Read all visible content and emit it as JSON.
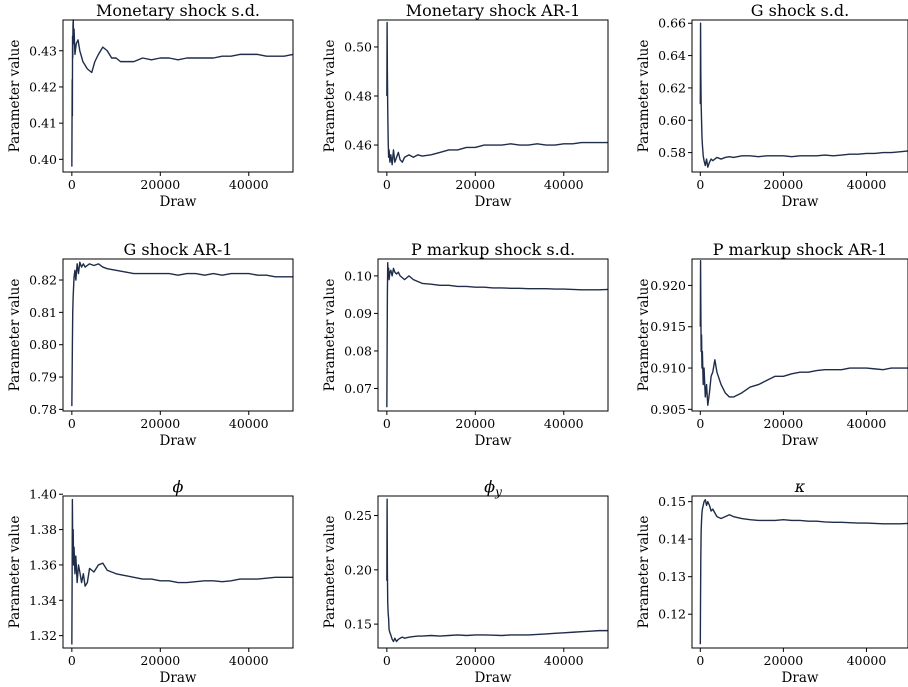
{
  "figure": {
    "line_color": "#1f2d4a"
  },
  "chart_data": [
    {
      "type": "line",
      "title": "Monetary shock s.d.",
      "xlabel": "Draw",
      "ylabel": "Parameter value",
      "xlim": [
        -2000,
        50000
      ],
      "ylim": [
        0.3965,
        0.4385
      ],
      "xticks": [
        0,
        20000,
        40000
      ],
      "yticks": [
        0.4,
        0.41,
        0.42,
        0.43
      ],
      "ytick_labels": [
        "0.40",
        "0.41",
        "0.42",
        "0.43"
      ],
      "series": [
        {
          "x": [
            0,
            80,
            120,
            160,
            200,
            260,
            320,
            400,
            500,
            700,
            1000,
            1400,
            1800,
            2500,
            3500,
            4500,
            5200,
            6000,
            7000,
            8000,
            9000,
            10000,
            11000,
            12000,
            14000,
            16000,
            18000,
            20000,
            22000,
            24000,
            26000,
            28000,
            30000,
            32000,
            34000,
            36000,
            38000,
            40000,
            42000,
            44000,
            46000,
            48000,
            50000
          ],
          "y": [
            0.398,
            0.422,
            0.412,
            0.434,
            0.428,
            0.437,
            0.4385,
            0.432,
            0.436,
            0.429,
            0.432,
            0.433,
            0.43,
            0.427,
            0.425,
            0.424,
            0.427,
            0.429,
            0.431,
            0.43,
            0.428,
            0.428,
            0.427,
            0.427,
            0.427,
            0.428,
            0.4275,
            0.428,
            0.428,
            0.4275,
            0.428,
            0.428,
            0.428,
            0.428,
            0.4285,
            0.4285,
            0.429,
            0.429,
            0.429,
            0.4285,
            0.4285,
            0.4285,
            0.429
          ]
        }
      ]
    },
    {
      "type": "line",
      "title": "Monetary shock AR-1",
      "xlabel": "Draw",
      "ylabel": "Parameter value",
      "xlim": [
        -2000,
        50000
      ],
      "ylim": [
        0.449,
        0.511
      ],
      "xticks": [
        0,
        20000,
        40000
      ],
      "yticks": [
        0.46,
        0.48,
        0.5
      ],
      "ytick_labels": [
        "0.46",
        "0.48",
        "0.50"
      ],
      "series": [
        {
          "x": [
            0,
            60,
            120,
            200,
            300,
            400,
            500,
            700,
            900,
            1200,
            1500,
            1800,
            2200,
            2600,
            3000,
            3500,
            4000,
            5000,
            6000,
            7000,
            8000,
            10000,
            12000,
            14000,
            16000,
            18000,
            20000,
            22000,
            24000,
            26000,
            28000,
            30000,
            32000,
            34000,
            36000,
            38000,
            40000,
            42000,
            44000,
            46000,
            48000,
            50000
          ],
          "y": [
            0.48,
            0.51,
            0.49,
            0.475,
            0.462,
            0.455,
            0.458,
            0.453,
            0.456,
            0.452,
            0.458,
            0.453,
            0.455,
            0.457,
            0.454,
            0.453,
            0.455,
            0.456,
            0.455,
            0.456,
            0.4555,
            0.456,
            0.457,
            0.458,
            0.458,
            0.459,
            0.459,
            0.46,
            0.46,
            0.46,
            0.4605,
            0.46,
            0.46,
            0.4605,
            0.46,
            0.46,
            0.4605,
            0.4605,
            0.461,
            0.461,
            0.461,
            0.461
          ]
        }
      ]
    },
    {
      "type": "line",
      "title": "G shock s.d.",
      "xlabel": "Draw",
      "ylabel": "Parameter value",
      "xlim": [
        -2000,
        50000
      ],
      "ylim": [
        0.568,
        0.662
      ],
      "xticks": [
        0,
        20000,
        40000
      ],
      "yticks": [
        0.58,
        0.6,
        0.62,
        0.64,
        0.66
      ],
      "ytick_labels": [
        "0.58",
        "0.60",
        "0.62",
        "0.64",
        "0.66"
      ],
      "series": [
        {
          "x": [
            0,
            60,
            120,
            200,
            300,
            400,
            500,
            700,
            900,
            1200,
            1500,
            1800,
            2200,
            2600,
            3000,
            3500,
            4000,
            5000,
            6000,
            7000,
            8000,
            10000,
            12000,
            14000,
            16000,
            18000,
            20000,
            22000,
            24000,
            26000,
            28000,
            30000,
            32000,
            34000,
            36000,
            38000,
            40000,
            42000,
            44000,
            46000,
            48000,
            50000
          ],
          "y": [
            0.61,
            0.66,
            0.63,
            0.61,
            0.6,
            0.59,
            0.585,
            0.578,
            0.575,
            0.572,
            0.576,
            0.571,
            0.574,
            0.576,
            0.575,
            0.576,
            0.577,
            0.576,
            0.577,
            0.5775,
            0.577,
            0.578,
            0.578,
            0.5775,
            0.578,
            0.578,
            0.578,
            0.5775,
            0.578,
            0.578,
            0.578,
            0.5785,
            0.578,
            0.5785,
            0.579,
            0.579,
            0.5795,
            0.5795,
            0.58,
            0.58,
            0.5805,
            0.581
          ]
        }
      ]
    },
    {
      "type": "line",
      "title": "G shock AR-1",
      "xlabel": "Draw",
      "ylabel": "Parameter value",
      "xlim": [
        -2000,
        50000
      ],
      "ylim": [
        0.7795,
        0.8265
      ],
      "xticks": [
        0,
        20000,
        40000
      ],
      "yticks": [
        0.78,
        0.79,
        0.8,
        0.81,
        0.82
      ],
      "ytick_labels": [
        "0.78",
        "0.79",
        "0.80",
        "0.81",
        "0.82"
      ],
      "series": [
        {
          "x": [
            0,
            60,
            120,
            200,
            300,
            400,
            500,
            700,
            900,
            1200,
            1500,
            1800,
            2200,
            2600,
            3000,
            3500,
            4000,
            5000,
            6000,
            7000,
            8000,
            10000,
            12000,
            14000,
            16000,
            18000,
            20000,
            22000,
            24000,
            26000,
            28000,
            30000,
            32000,
            34000,
            36000,
            38000,
            40000,
            42000,
            44000,
            46000,
            48000,
            50000
          ],
          "y": [
            0.781,
            0.79,
            0.8,
            0.81,
            0.815,
            0.818,
            0.821,
            0.823,
            0.82,
            0.825,
            0.822,
            0.8255,
            0.824,
            0.825,
            0.824,
            0.8245,
            0.825,
            0.8245,
            0.825,
            0.824,
            0.8235,
            0.823,
            0.8225,
            0.822,
            0.822,
            0.822,
            0.822,
            0.822,
            0.8215,
            0.822,
            0.822,
            0.8215,
            0.822,
            0.8215,
            0.822,
            0.822,
            0.822,
            0.8215,
            0.8215,
            0.821,
            0.821,
            0.821
          ]
        }
      ]
    },
    {
      "type": "line",
      "title": "P markup shock s.d.",
      "xlabel": "Draw",
      "ylabel": "Parameter value",
      "xlim": [
        -2000,
        50000
      ],
      "ylim": [
        0.064,
        0.1045
      ],
      "xticks": [
        0,
        20000,
        40000
      ],
      "yticks": [
        0.07,
        0.08,
        0.09,
        0.1
      ],
      "ytick_labels": [
        "0.07",
        "0.08",
        "0.09",
        "0.10"
      ],
      "series": [
        {
          "x": [
            0,
            60,
            120,
            200,
            300,
            400,
            500,
            700,
            900,
            1200,
            1500,
            1800,
            2200,
            2600,
            3000,
            3500,
            4000,
            5000,
            6000,
            7000,
            8000,
            10000,
            12000,
            14000,
            16000,
            18000,
            20000,
            22000,
            24000,
            26000,
            28000,
            30000,
            32000,
            34000,
            36000,
            38000,
            40000,
            42000,
            44000,
            46000,
            48000,
            50000
          ],
          "y": [
            0.065,
            0.08,
            0.095,
            0.1035,
            0.1,
            0.102,
            0.099,
            0.101,
            0.1015,
            0.1,
            0.102,
            0.101,
            0.1005,
            0.101,
            0.1,
            0.0995,
            0.099,
            0.1,
            0.099,
            0.0985,
            0.098,
            0.0978,
            0.0975,
            0.0975,
            0.0972,
            0.0972,
            0.097,
            0.097,
            0.0968,
            0.0968,
            0.0967,
            0.0967,
            0.0966,
            0.0966,
            0.0966,
            0.0965,
            0.0965,
            0.0964,
            0.0963,
            0.0963,
            0.0963,
            0.0964
          ]
        }
      ]
    },
    {
      "type": "line",
      "title": "P markup shock AR-1",
      "xlabel": "Draw",
      "ylabel": "Parameter value",
      "xlim": [
        -2000,
        50000
      ],
      "ylim": [
        0.9048,
        0.9232
      ],
      "xticks": [
        0,
        20000,
        40000
      ],
      "yticks": [
        0.905,
        0.91,
        0.915,
        0.92
      ],
      "ytick_labels": [
        "0.905",
        "0.910",
        "0.915",
        "0.920"
      ],
      "series": [
        {
          "x": [
            0,
            60,
            120,
            200,
            300,
            400,
            500,
            700,
            900,
            1200,
            1500,
            1800,
            2200,
            2600,
            3000,
            3500,
            4000,
            5000,
            6000,
            7000,
            8000,
            10000,
            12000,
            14000,
            16000,
            18000,
            20000,
            22000,
            24000,
            26000,
            28000,
            30000,
            32000,
            34000,
            36000,
            38000,
            40000,
            42000,
            44000,
            46000,
            48000,
            50000
          ],
          "y": [
            0.915,
            0.923,
            0.918,
            0.912,
            0.914,
            0.91,
            0.912,
            0.908,
            0.91,
            0.9065,
            0.908,
            0.9055,
            0.907,
            0.909,
            0.9095,
            0.911,
            0.9095,
            0.908,
            0.907,
            0.9065,
            0.9065,
            0.907,
            0.9077,
            0.908,
            0.9085,
            0.909,
            0.909,
            0.9093,
            0.9095,
            0.9095,
            0.9097,
            0.9098,
            0.9098,
            0.9098,
            0.91,
            0.91,
            0.91,
            0.9099,
            0.9098,
            0.91,
            0.91,
            0.91
          ]
        }
      ]
    },
    {
      "type": "line",
      "title": "ϕ",
      "xlabel": "Draw",
      "ylabel": "Parameter value",
      "xlim": [
        -2000,
        50000
      ],
      "ylim": [
        1.313,
        1.399
      ],
      "xticks": [
        0,
        20000,
        40000
      ],
      "yticks": [
        1.32,
        1.34,
        1.36,
        1.38,
        1.4
      ],
      "ytick_labels": [
        "1.32",
        "1.34",
        "1.36",
        "1.38",
        "1.40"
      ],
      "series": [
        {
          "x": [
            0,
            60,
            120,
            200,
            300,
            400,
            500,
            700,
            900,
            1200,
            1500,
            1800,
            2200,
            2600,
            3000,
            3500,
            4000,
            5000,
            6000,
            7000,
            8000,
            10000,
            12000,
            14000,
            16000,
            18000,
            20000,
            22000,
            24000,
            26000,
            28000,
            30000,
            32000,
            34000,
            36000,
            38000,
            40000,
            42000,
            44000,
            46000,
            48000,
            50000
          ],
          "y": [
            1.315,
            1.35,
            1.397,
            1.37,
            1.38,
            1.36,
            1.37,
            1.355,
            1.365,
            1.35,
            1.36,
            1.356,
            1.35,
            1.355,
            1.348,
            1.35,
            1.358,
            1.356,
            1.36,
            1.361,
            1.357,
            1.355,
            1.354,
            1.353,
            1.352,
            1.352,
            1.351,
            1.351,
            1.35,
            1.35,
            1.3505,
            1.351,
            1.351,
            1.3505,
            1.351,
            1.352,
            1.352,
            1.352,
            1.3525,
            1.353,
            1.353,
            1.353
          ]
        }
      ]
    },
    {
      "type": "line",
      "title": "ϕ",
      "title_subscript": "y",
      "xlabel": "Draw",
      "ylabel": "Parameter value",
      "xlim": [
        -2000,
        50000
      ],
      "ylim": [
        0.128,
        0.268
      ],
      "xticks": [
        0,
        20000,
        40000
      ],
      "yticks": [
        0.15,
        0.2,
        0.25
      ],
      "ytick_labels": [
        "0.15",
        "0.20",
        "0.25"
      ],
      "series": [
        {
          "x": [
            0,
            60,
            120,
            200,
            300,
            400,
            500,
            700,
            900,
            1200,
            1500,
            1800,
            2200,
            2600,
            3000,
            3500,
            4000,
            5000,
            6000,
            7000,
            8000,
            10000,
            12000,
            14000,
            16000,
            18000,
            20000,
            22000,
            24000,
            26000,
            28000,
            30000,
            32000,
            34000,
            36000,
            38000,
            40000,
            42000,
            44000,
            46000,
            48000,
            50000
          ],
          "y": [
            0.19,
            0.265,
            0.2,
            0.17,
            0.16,
            0.155,
            0.145,
            0.142,
            0.14,
            0.136,
            0.134,
            0.137,
            0.134,
            0.136,
            0.137,
            0.138,
            0.137,
            0.138,
            0.1385,
            0.139,
            0.139,
            0.1395,
            0.139,
            0.1395,
            0.14,
            0.1395,
            0.14,
            0.14,
            0.1398,
            0.1395,
            0.14,
            0.14,
            0.14,
            0.1405,
            0.141,
            0.1415,
            0.142,
            0.1425,
            0.143,
            0.1435,
            0.144,
            0.144
          ]
        }
      ]
    },
    {
      "type": "line",
      "title": "κ",
      "xlabel": "Draw",
      "ylabel": "Parameter value",
      "xlim": [
        -2000,
        50000
      ],
      "ylim": [
        0.111,
        0.1515
      ],
      "xticks": [
        0,
        20000,
        40000
      ],
      "yticks": [
        0.12,
        0.13,
        0.14,
        0.15
      ],
      "ytick_labels": [
        "0.12",
        "0.13",
        "0.14",
        "0.15"
      ],
      "series": [
        {
          "x": [
            0,
            60,
            120,
            200,
            300,
            400,
            500,
            700,
            900,
            1200,
            1500,
            1800,
            2200,
            2600,
            3000,
            3500,
            4000,
            5000,
            6000,
            7000,
            8000,
            10000,
            12000,
            14000,
            16000,
            18000,
            20000,
            22000,
            24000,
            26000,
            28000,
            30000,
            32000,
            34000,
            36000,
            38000,
            40000,
            42000,
            44000,
            46000,
            48000,
            50000
          ],
          "y": [
            0.112,
            0.125,
            0.135,
            0.142,
            0.145,
            0.147,
            0.148,
            0.149,
            0.15,
            0.1505,
            0.149,
            0.15,
            0.149,
            0.1475,
            0.148,
            0.147,
            0.146,
            0.1455,
            0.146,
            0.1465,
            0.146,
            0.1455,
            0.1452,
            0.145,
            0.145,
            0.145,
            0.1452,
            0.145,
            0.145,
            0.1448,
            0.1448,
            0.1446,
            0.1445,
            0.1445,
            0.1444,
            0.1443,
            0.1443,
            0.1442,
            0.1441,
            0.1441,
            0.1441,
            0.1442
          ]
        }
      ]
    }
  ]
}
